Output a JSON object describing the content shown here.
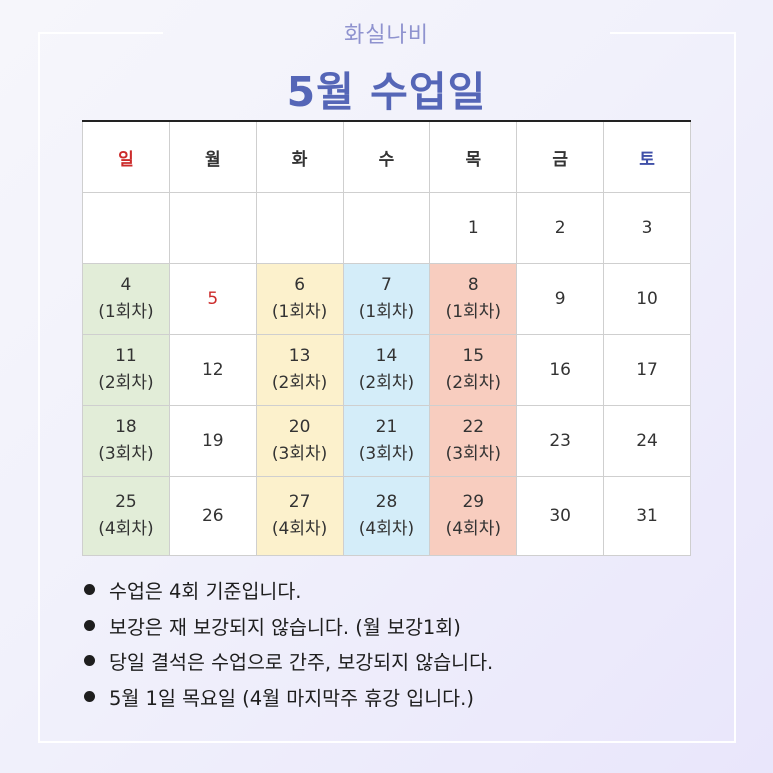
{
  "brand": "화실나비",
  "title": "5월 수업일",
  "calendar": {
    "headers": [
      "일",
      "월",
      "화",
      "수",
      "목",
      "금",
      "토"
    ],
    "rows": [
      [
        {
          "day": ""
        },
        {
          "day": ""
        },
        {
          "day": ""
        },
        {
          "day": ""
        },
        {
          "day": "1"
        },
        {
          "day": "2"
        },
        {
          "day": "3"
        }
      ],
      [
        {
          "day": "4",
          "session": "(1회차)"
        },
        {
          "day": "5"
        },
        {
          "day": "6",
          "session": "(1회차)"
        },
        {
          "day": "7",
          "session": "(1회차)"
        },
        {
          "day": "8",
          "session": "(1회차)"
        },
        {
          "day": "9"
        },
        {
          "day": "10"
        }
      ],
      [
        {
          "day": "11",
          "session": "(2회차)"
        },
        {
          "day": "12"
        },
        {
          "day": "13",
          "session": "(2회차)"
        },
        {
          "day": "14",
          "session": "(2회차)"
        },
        {
          "day": "15",
          "session": "(2회차)"
        },
        {
          "day": "16"
        },
        {
          "day": "17"
        }
      ],
      [
        {
          "day": "18",
          "session": "(3회차)"
        },
        {
          "day": "19"
        },
        {
          "day": "20",
          "session": "(3회차)"
        },
        {
          "day": "21",
          "session": "(3회차)"
        },
        {
          "day": "22",
          "session": "(3회차)"
        },
        {
          "day": "23"
        },
        {
          "day": "24"
        }
      ],
      [
        {
          "day": "25",
          "session": "(4회차)"
        },
        {
          "day": "26"
        },
        {
          "day": "27",
          "session": "(4회차)"
        },
        {
          "day": "28",
          "session": "(4회차)"
        },
        {
          "day": "29",
          "session": "(4회차)"
        },
        {
          "day": "30"
        },
        {
          "day": "31"
        }
      ]
    ]
  },
  "colors": {
    "sunday_class": "#e2edd8",
    "tuesday_class": "#fcf1cc",
    "wednesday_class": "#d4edf9",
    "thursday_class": "#f8cdbf",
    "holiday_text": "#cc2b2b",
    "title": "#5566b7"
  },
  "notes": [
    "수업은 4회 기준입니다.",
    "보강은 재 보강되지 않습니다. (월 보강1회)",
    "당일 결석은 수업으로 간주, 보강되지 않습니다.",
    "5월 1일 목요일 (4월 마지막주 휴강 입니다.)"
  ]
}
